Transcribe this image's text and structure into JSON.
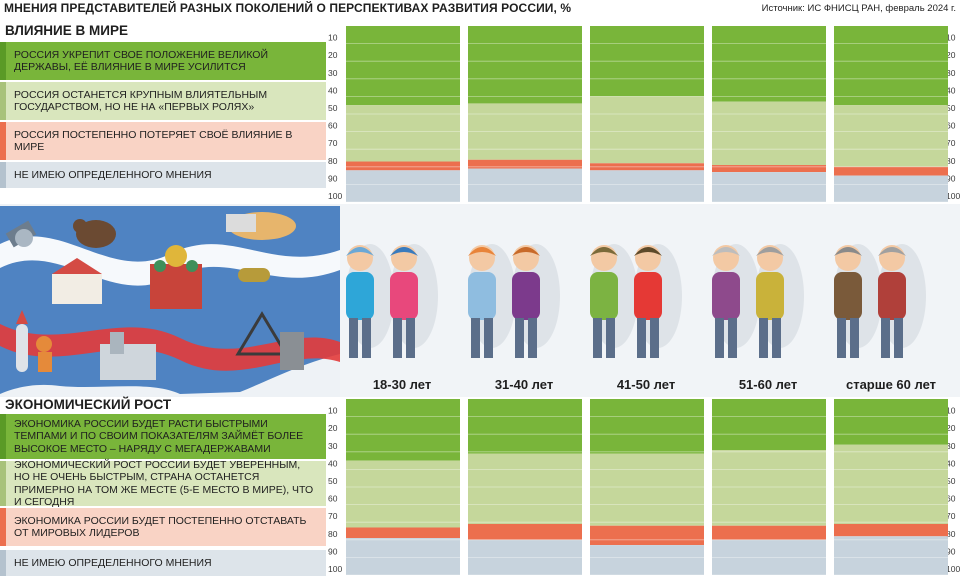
{
  "title": "МНЕНИЯ ПРЕДСТАВИТЕЛЕЙ РАЗНЫХ ПОКОЛЕНИЙ О ПЕРСПЕКТИВАХ РАЗВИТИЯ РОССИИ, %",
  "source": "Источник: ИС ФНИСЦ РАН, февраль 2024 г.",
  "colors": {
    "strong": "#79b53a",
    "moderate": "#c5d79b",
    "decline": "#ec6f4e",
    "undecided": "#c7d3dd"
  },
  "legend_colors": {
    "strong": "#79b53a",
    "moderate": "#d9e6bd",
    "decline": "#f9d3c5",
    "undecided": "#dde4ea"
  },
  "age_groups": [
    "18-30 лет",
    "31-40 лет",
    "41-50 лет",
    "51-60 лет",
    "старше 60 лет"
  ],
  "ticks": [
    "10",
    "20",
    "30",
    "40",
    "50",
    "60",
    "70",
    "80",
    "90",
    "100"
  ],
  "sections": {
    "influence": {
      "title": "ВЛИЯНИЕ В МИРЕ",
      "legend": [
        "РОССИЯ УКРЕПИТ СВОЕ ПОЛОЖЕНИЕ ВЕЛИКОЙ ДЕРЖАВЫ, ЕЁ ВЛИЯНИЕ В МИРЕ УСИЛИТСЯ",
        "РОССИЯ ОСТАНЕТСЯ КРУПНЫМ ВЛИЯТЕЛЬНЫМ ГОСУДАРСТВОМ, НО НЕ НА «ПЕРВЫХ РОЛЯХ»",
        "РОССИЯ ПОСТЕПЕННО ПОТЕРЯЕТ СВОЁ ВЛИЯНИЕ В МИРЕ",
        "НЕ ИМЕЮ ОПРЕДЕЛЕННОГО МНЕНИЯ"
      ]
    },
    "economy": {
      "title": "ЭКОНОМИЧЕСКИЙ РОСТ",
      "legend": [
        "ЭКОНОМИКА РОССИИ БУДЕТ РАСТИ БЫСТРЫМИ ТЕМПАМИ И ПО СВОИМ ПОКАЗАТЕЛЯМ ЗАЙМЁТ БОЛЕЕ ВЫСОКОЕ МЕСТО – НАРЯДУ С МЕГАДЕРЖАВАМИ",
        "ЭКОНОМИЧЕСКИЙ РОСТ РОССИИ БУДЕТ УВЕРЕННЫМ, НО НЕ ОЧЕНЬ БЫСТРЫМ, СТРАНА ОСТАНЕТСЯ ПРИМЕРНО НА ТОМ ЖЕ МЕСТЕ (5-Е МЕСТО В МИРЕ), ЧТО И СЕГОДНЯ",
        "ЭКОНОМИКА РОССИИ БУДЕТ ПОСТЕПЕННО ОТСТАВАТЬ ОТ МИРОВЫХ ЛИДЕРОВ",
        "НЕ ИМЕЮ ОПРЕДЕЛЕННОГО МНЕНИЯ"
      ]
    }
  },
  "chart_data": [
    {
      "type": "bar",
      "stacked": true,
      "title": "ВЛИЯНИЕ В МИРЕ",
      "categories": [
        "18-30 лет",
        "31-40 лет",
        "41-50 лет",
        "51-60 лет",
        "старше 60 лет"
      ],
      "ylim": [
        0,
        100
      ],
      "series": [
        {
          "name": "РОССИЯ УКРЕПИТ СВОЕ ПОЛОЖЕНИЕ ВЕЛИКОЙ ДЕРЖАВЫ, ЕЁ ВЛИЯНИЕ В МИРЕ УСИЛИТСЯ",
          "values": [
            45,
            44,
            40,
            43,
            45
          ]
        },
        {
          "name": "РОССИЯ ОСТАНЕТСЯ КРУПНЫМ ВЛИЯТЕЛЬНЫМ ГОСУДАРСТВОМ, НО НЕ НА «ПЕРВЫХ РОЛЯХ»",
          "values": [
            32,
            32,
            38,
            36,
            35
          ]
        },
        {
          "name": "РОССИЯ ПОСТЕПЕННО ПОТЕРЯЕТ СВОЁ ВЛИЯНИЕ В МИРЕ",
          "values": [
            5,
            5,
            4,
            4,
            5
          ]
        },
        {
          "name": "НЕ ИМЕЮ ОПРЕДЕЛЕННОГО МНЕНИЯ",
          "values": [
            18,
            19,
            18,
            17,
            15
          ]
        }
      ]
    },
    {
      "type": "bar",
      "stacked": true,
      "title": "ЭКОНОМИЧЕСКИЙ РОСТ",
      "categories": [
        "18-30 лет",
        "31-40 лет",
        "41-50 лет",
        "51-60 лет",
        "старше 60 лет"
      ],
      "ylim": [
        0,
        100
      ],
      "series": [
        {
          "name": "ЭКОНОМИКА РОССИИ БУДЕТ РАСТИ БЫСТРЫМИ ТЕМПАМИ И ПО СВОИМ ПОКАЗАТЕЛЯМ ЗАЙМЁТ БОЛЕЕ ВЫСОКОЕ МЕСТО – НАРЯДУ С МЕГАДЕРЖАВАМИ",
          "values": [
            35,
            31,
            31,
            29,
            26
          ]
        },
        {
          "name": "ЭКОНОМИЧЕСКИЙ РОСТ РОССИИ БУДЕТ УВЕРЕННЫМ, НО НЕ ОЧЕНЬ БЫСТРЫМ, СТРАНА ОСТАНЕТСЯ ПРИМЕРНО НА ТОМ ЖЕ МЕСТЕ (5-Е МЕСТО В МИРЕ), ЧТО И СЕГОДНЯ",
          "values": [
            38,
            40,
            41,
            43,
            45
          ]
        },
        {
          "name": "ЭКОНОМИКА РОССИИ БУДЕТ ПОСТЕПЕННО ОТСТАВАТЬ ОТ МИРОВЫХ ЛИДЕРОВ",
          "values": [
            6,
            9,
            11,
            8,
            7
          ]
        },
        {
          "name": "НЕ ИМЕЮ ОПРЕДЕЛЕННОГО МНЕНИЯ",
          "values": [
            21,
            20,
            17,
            20,
            22
          ]
        }
      ]
    }
  ]
}
